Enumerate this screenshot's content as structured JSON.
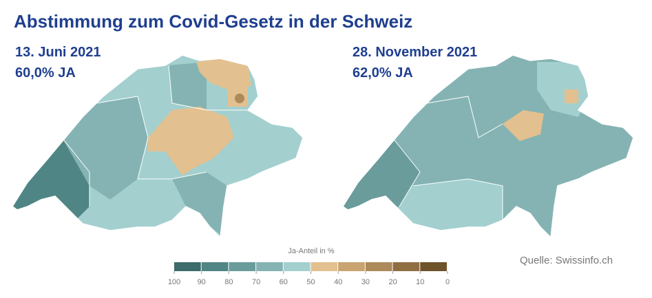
{
  "title": "Abstimmung zum Covid-Gesetz in der Schweiz",
  "maps": [
    {
      "date": "13. Juni 2021",
      "result": "60,0% JA"
    },
    {
      "date": "28. November 2021",
      "result": "62,0% JA"
    }
  ],
  "legend": {
    "title": "Ja-Anteil in %",
    "ticks": [
      100,
      90,
      80,
      70,
      60,
      50,
      40,
      30,
      20,
      10,
      0
    ],
    "colors": [
      "#3e6b6b",
      "#4f8585",
      "#6a9c9c",
      "#85b3b3",
      "#a3cfcf",
      "#e3c08f",
      "#c9a470",
      "#ad8a5a",
      "#8f6e42",
      "#6e522a"
    ]
  },
  "source": "Quelle: Swissinfo.ch"
}
